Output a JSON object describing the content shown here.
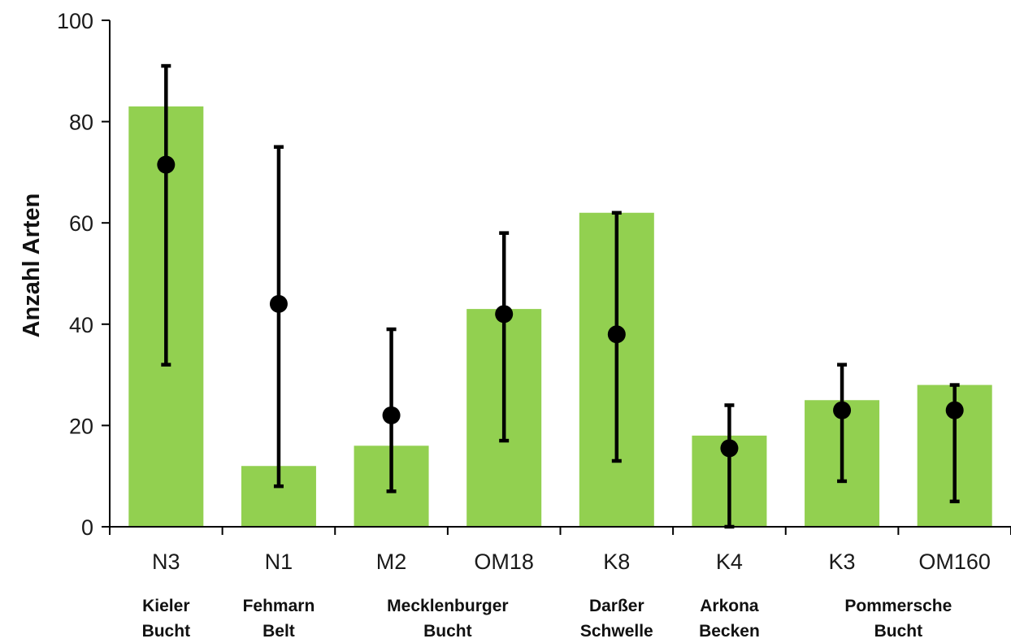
{
  "chart_data": {
    "type": "bar",
    "title": "",
    "xlabel": "",
    "ylabel": "Anzahl Arten",
    "ylim": [
      0,
      100
    ],
    "yticks": [
      0,
      20,
      40,
      60,
      80,
      100
    ],
    "ytick_labels": [
      "0",
      "20",
      "40",
      "60",
      "80",
      "100"
    ],
    "categories": [
      "N3",
      "N1",
      "M2",
      "OM18",
      "K8",
      "K4",
      "K3",
      "OM160"
    ],
    "values": [
      83,
      12,
      16,
      43,
      62,
      18,
      25,
      28
    ],
    "points": [
      {
        "mean": 71.5,
        "low": 32,
        "high": 91
      },
      {
        "mean": 44,
        "low": 8,
        "high": 75
      },
      {
        "mean": 22,
        "low": 7,
        "high": 39
      },
      {
        "mean": 42,
        "low": 17,
        "high": 58
      },
      {
        "mean": 38,
        "low": 13,
        "high": 62
      },
      {
        "mean": 15.5,
        "low": 0,
        "high": 24
      },
      {
        "mean": 23,
        "low": 9,
        "high": 32
      },
      {
        "mean": 23,
        "low": 5,
        "high": 28
      }
    ],
    "regions": [
      {
        "lines": [
          "Kieler",
          "Bucht"
        ],
        "span": [
          0,
          0
        ]
      },
      {
        "lines": [
          "Fehmarn",
          "Belt"
        ],
        "span": [
          1,
          1
        ]
      },
      {
        "lines": [
          "Mecklenburger",
          "Bucht"
        ],
        "span": [
          2,
          3
        ]
      },
      {
        "lines": [
          "Darßer",
          "Schwelle"
        ],
        "span": [
          4,
          4
        ]
      },
      {
        "lines": [
          "Arkona",
          "Becken"
        ],
        "span": [
          5,
          5
        ]
      },
      {
        "lines": [
          "Pommersche",
          "Bucht"
        ],
        "span": [
          6,
          7
        ]
      }
    ],
    "colors": {
      "bar": "#92d050",
      "marker": "#000000",
      "axis": "#000000"
    },
    "grid": false
  }
}
